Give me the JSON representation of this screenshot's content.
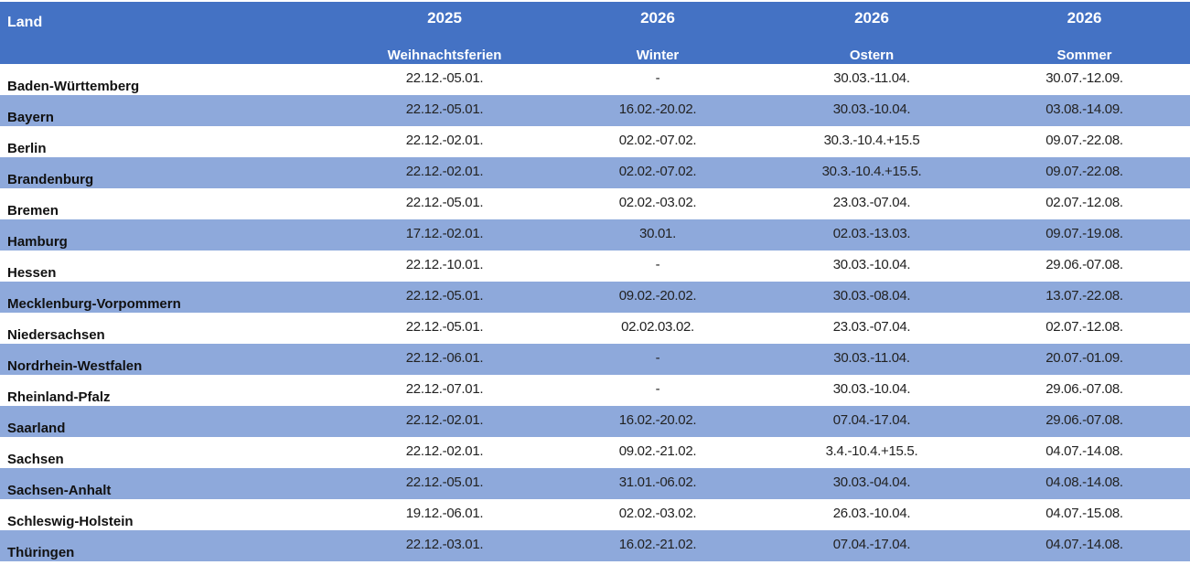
{
  "header": {
    "land_label": "Land",
    "columns": [
      {
        "year": "2025",
        "name": "Weihnachtsferien"
      },
      {
        "year": "2026",
        "name": "Winter"
      },
      {
        "year": "2026",
        "name": "Ostern"
      },
      {
        "year": "2026",
        "name": "Sommer"
      }
    ]
  },
  "colors": {
    "header_bg": "#4472C4",
    "stripe_bg": "#8EA9DB"
  },
  "rows": [
    {
      "land": "Baden-Württemberg",
      "values": [
        "22.12.-05.01.",
        "-",
        "30.03.-11.04.",
        "30.07.-12.09."
      ]
    },
    {
      "land": "Bayern",
      "values": [
        "22.12.-05.01.",
        "16.02.-20.02.",
        "30.03.-10.04.",
        "03.08.-14.09."
      ]
    },
    {
      "land": "Berlin",
      "values": [
        "22.12.-02.01.",
        "02.02.-07.02.",
        "30.3.-10.4.+15.5",
        "09.07.-22.08."
      ]
    },
    {
      "land": "Brandenburg",
      "values": [
        "22.12.-02.01.",
        "02.02.-07.02.",
        "30.3.-10.4.+15.5.",
        "09.07.-22.08."
      ]
    },
    {
      "land": "Bremen",
      "values": [
        "22.12.-05.01.",
        "02.02.-03.02.",
        "23.03.-07.04.",
        "02.07.-12.08."
      ]
    },
    {
      "land": "Hamburg",
      "values": [
        "17.12.-02.01.",
        "30.01.",
        "02.03.-13.03.",
        "09.07.-19.08."
      ]
    },
    {
      "land": "Hessen",
      "values": [
        "22.12.-10.01.",
        "-",
        "30.03.-10.04.",
        "29.06.-07.08."
      ]
    },
    {
      "land": "Mecklenburg-Vorpommern",
      "values": [
        "22.12.-05.01.",
        "09.02.-20.02.",
        "30.03.-08.04.",
        "13.07.-22.08."
      ]
    },
    {
      "land": "Niedersachsen",
      "values": [
        "22.12.-05.01.",
        "02.02.03.02.",
        "23.03.-07.04.",
        "02.07.-12.08."
      ]
    },
    {
      "land": "Nordrhein-Westfalen",
      "values": [
        "22.12.-06.01.",
        "-",
        "30.03.-11.04.",
        "20.07.-01.09."
      ]
    },
    {
      "land": "Rheinland-Pfalz",
      "values": [
        "22.12.-07.01.",
        "-",
        "30.03.-10.04.",
        "29.06.-07.08."
      ]
    },
    {
      "land": "Saarland",
      "values": [
        "22.12.-02.01.",
        "16.02.-20.02.",
        "07.04.-17.04.",
        "29.06.-07.08."
      ]
    },
    {
      "land": "Sachsen",
      "values": [
        "22.12.-02.01.",
        "09.02.-21.02.",
        "3.4.-10.4.+15.5.",
        "04.07.-14.08."
      ]
    },
    {
      "land": "Sachsen-Anhalt",
      "values": [
        "22.12.-05.01.",
        "31.01.-06.02.",
        "30.03.-04.04.",
        "04.08.-14.08."
      ]
    },
    {
      "land": "Schleswig-Holstein",
      "values": [
        "19.12.-06.01.",
        "02.02.-03.02.",
        "26.03.-10.04.",
        "04.07.-15.08."
      ]
    },
    {
      "land": "Thüringen",
      "values": [
        "22.12.-03.01.",
        "16.02.-21.02.",
        "07.04.-17.04.",
        "04.07.-14.08."
      ]
    }
  ]
}
